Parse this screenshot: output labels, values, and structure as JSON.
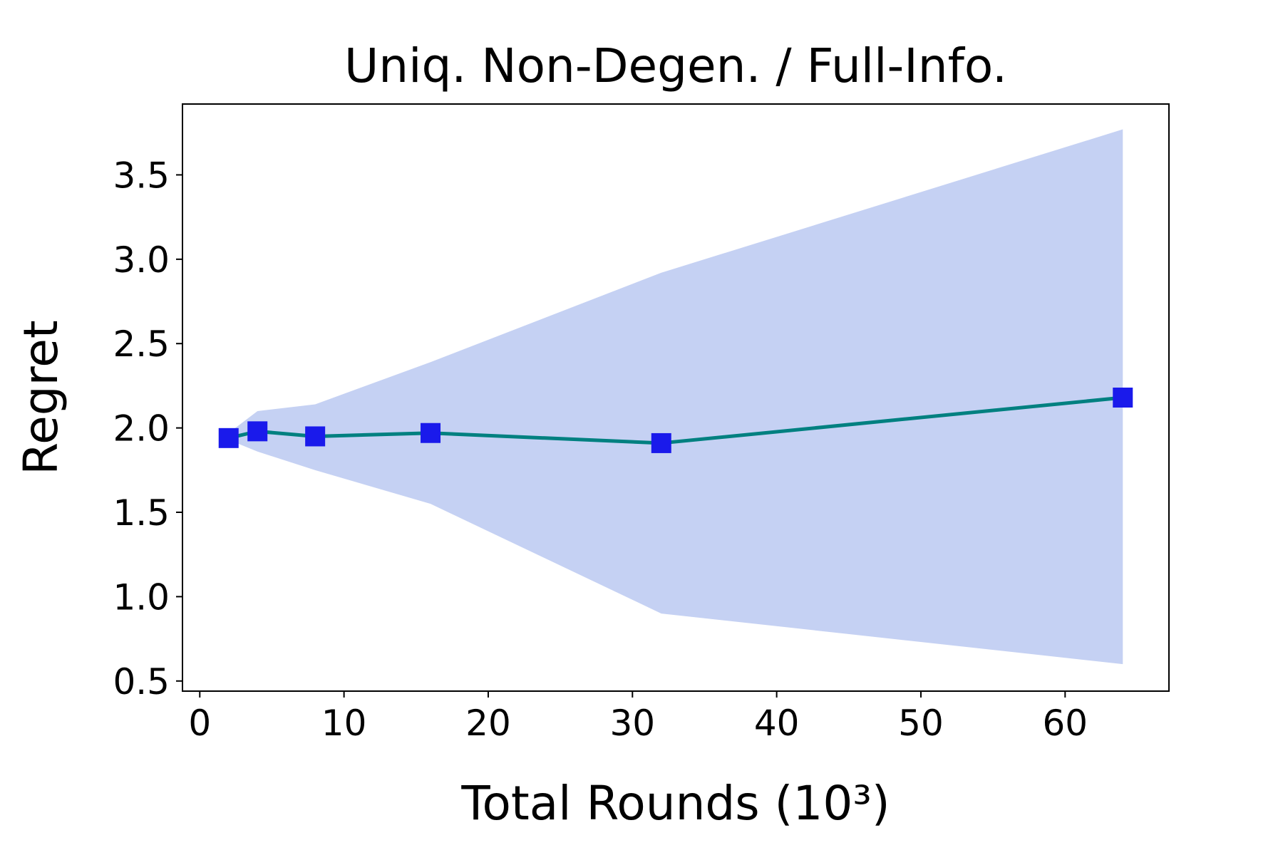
{
  "chart_data": {
    "type": "line",
    "title": "Uniq. Non-Degen. / Full-Info.",
    "x_label": "Total Rounds (10³)",
    "y_label": "Regret",
    "x": [
      2,
      4,
      8,
      16,
      32,
      64
    ],
    "series": [
      {
        "color": "#008080",
        "marker_color": "#1a1aeb",
        "values": [
          1.94,
          1.98,
          1.95,
          1.97,
          1.91,
          2.18
        ],
        "band": {
          "color": "#c5d1f3",
          "lower": [
            1.93,
            1.86,
            1.75,
            1.55,
            0.9,
            0.6
          ],
          "upper": [
            1.97,
            2.1,
            2.14,
            2.39,
            2.92,
            3.77
          ]
        }
      }
    ],
    "xlim": [
      -1.2,
      67.2
    ],
    "ylim": [
      0.44,
      3.92
    ],
    "xticks": [
      0,
      10,
      20,
      30,
      40,
      50,
      60
    ],
    "yticks": [
      {
        "value": 0.5,
        "label": "0.5"
      },
      {
        "value": 1.0,
        "label": "1.0"
      },
      {
        "value": 1.5,
        "label": "1.5"
      },
      {
        "value": 2.0,
        "label": "2.0"
      },
      {
        "value": 2.5,
        "label": "2.5"
      },
      {
        "value": 3.0,
        "label": "3.0"
      },
      {
        "value": 3.5,
        "label": "3.5"
      }
    ],
    "grid": false
  }
}
